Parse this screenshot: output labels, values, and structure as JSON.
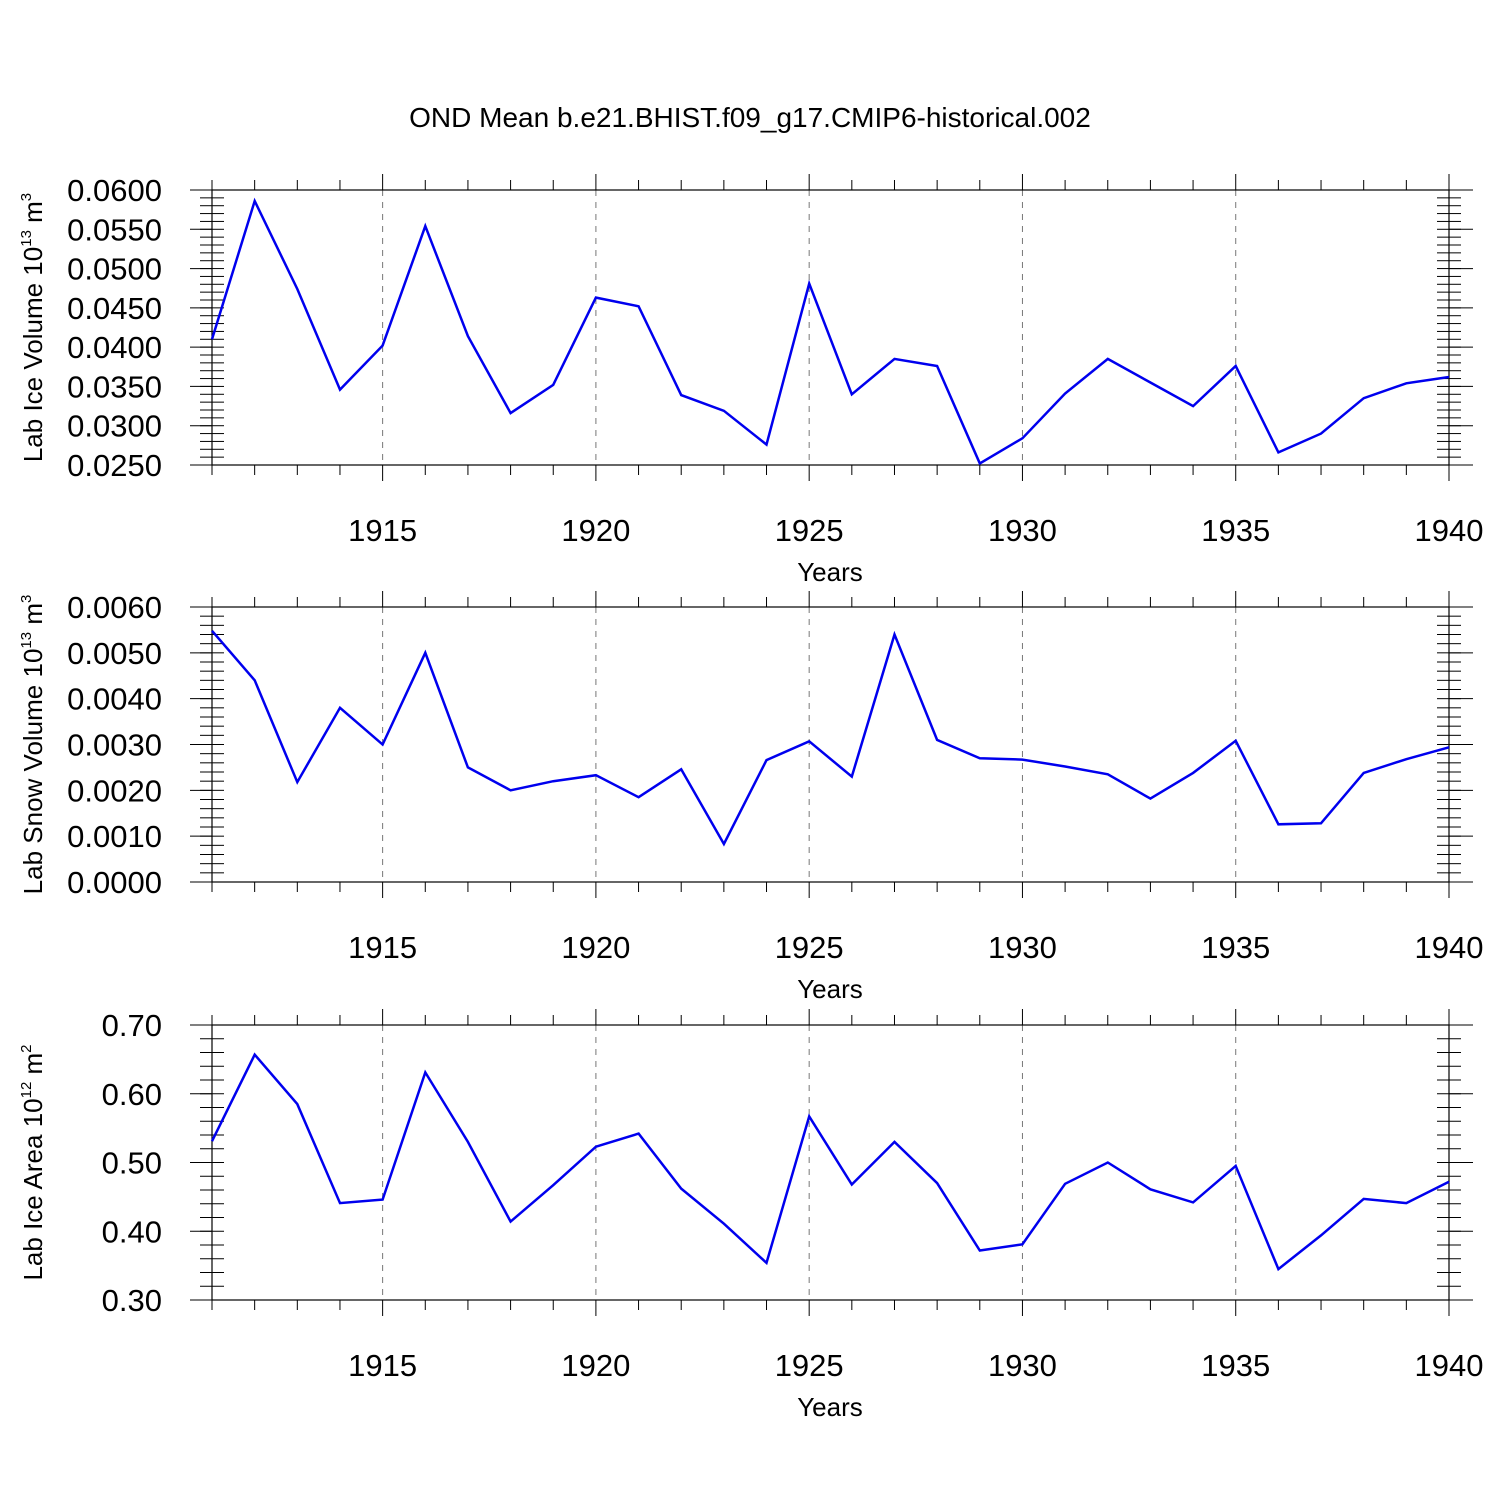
{
  "title": "OND Mean b.e21.BHIST.f09_g17.CMIP6-historical.002",
  "chart_data": [
    {
      "type": "line",
      "ylabel": {
        "base": "Lab Ice Volume 10",
        "exp": "13",
        "unit": " m",
        "unit_exp": "3"
      },
      "xlabel": "Years",
      "xlim": [
        1911,
        1940
      ],
      "ylim": [
        0.025,
        0.06
      ],
      "x_ticks": [
        "1915",
        "1920",
        "1925",
        "1930",
        "1935",
        "1940"
      ],
      "y_ticks": [
        "0.0600",
        "0.0550",
        "0.0500",
        "0.0450",
        "0.0400",
        "0.0350",
        "0.0300",
        "0.0250"
      ],
      "x": [
        1911,
        1912,
        1913,
        1914,
        1915,
        1916,
        1917,
        1918,
        1919,
        1920,
        1921,
        1922,
        1923,
        1924,
        1925,
        1926,
        1927,
        1928,
        1929,
        1930,
        1931,
        1932,
        1933,
        1934,
        1935,
        1936,
        1937,
        1938,
        1939,
        1940
      ],
      "values": [
        0.041,
        0.0586,
        0.0474,
        0.0346,
        0.0402,
        0.0554,
        0.0414,
        0.0316,
        0.0352,
        0.0463,
        0.0452,
        0.0339,
        0.0319,
        0.0276,
        0.0481,
        0.034,
        0.0385,
        0.0376,
        0.0252,
        0.0284,
        0.0341,
        0.0385,
        0.0355,
        0.0325,
        0.0376,
        0.0266,
        0.029,
        0.0335,
        0.0354,
        0.0362
      ],
      "grid": "vertical dashed at major ticks",
      "color": "#0000ee"
    },
    {
      "type": "line",
      "ylabel": {
        "base": "Lab Snow Volume 10",
        "exp": "13",
        "unit": " m",
        "unit_exp": "3"
      },
      "xlabel": "Years",
      "xlim": [
        1911,
        1940
      ],
      "ylim": [
        0.0,
        0.006
      ],
      "x_ticks": [
        "1915",
        "1920",
        "1925",
        "1930",
        "1935",
        "1940"
      ],
      "y_ticks": [
        "0.0060",
        "0.0050",
        "0.0040",
        "0.0030",
        "0.0020",
        "0.0010",
        "0.0000"
      ],
      "x": [
        1911,
        1912,
        1913,
        1914,
        1915,
        1916,
        1917,
        1918,
        1919,
        1920,
        1921,
        1922,
        1923,
        1924,
        1925,
        1926,
        1927,
        1928,
        1929,
        1930,
        1931,
        1932,
        1933,
        1934,
        1935,
        1936,
        1937,
        1938,
        1939,
        1940
      ],
      "values": [
        0.00548,
        0.0044,
        0.00218,
        0.0038,
        0.003,
        0.005,
        0.0025,
        0.002,
        0.0022,
        0.00233,
        0.00185,
        0.00246,
        0.00083,
        0.00266,
        0.00307,
        0.0023,
        0.0054,
        0.0031,
        0.0027,
        0.00267,
        0.00252,
        0.00235,
        0.00182,
        0.00238,
        0.00308,
        0.00126,
        0.00128,
        0.00238,
        0.00268,
        0.00294
      ],
      "grid": "vertical dashed at major ticks",
      "color": "#0000ee"
    },
    {
      "type": "line",
      "ylabel": {
        "base": "Lab Ice Area 10",
        "exp": "12",
        "unit": " m",
        "unit_exp": "2"
      },
      "xlabel": "Years",
      "xlim": [
        1911,
        1940
      ],
      "ylim": [
        0.3,
        0.7
      ],
      "x_ticks": [
        "1915",
        "1920",
        "1925",
        "1930",
        "1935",
        "1940"
      ],
      "y_ticks": [
        "0.70",
        "0.60",
        "0.50",
        "0.40",
        "0.30"
      ],
      "x": [
        1911,
        1912,
        1913,
        1914,
        1915,
        1916,
        1917,
        1918,
        1919,
        1920,
        1921,
        1922,
        1923,
        1924,
        1925,
        1926,
        1927,
        1928,
        1929,
        1930,
        1931,
        1932,
        1933,
        1934,
        1935,
        1936,
        1937,
        1938,
        1939,
        1940
      ],
      "values": [
        0.531,
        0.657,
        0.585,
        0.441,
        0.446,
        0.631,
        0.53,
        0.414,
        0.467,
        0.523,
        0.542,
        0.462,
        0.411,
        0.354,
        0.567,
        0.468,
        0.53,
        0.47,
        0.372,
        0.381,
        0.469,
        0.5,
        0.461,
        0.442,
        0.495,
        0.345,
        0.394,
        0.447,
        0.441,
        0.472
      ],
      "grid": "vertical dashed at major ticks",
      "color": "#0000ee"
    }
  ]
}
